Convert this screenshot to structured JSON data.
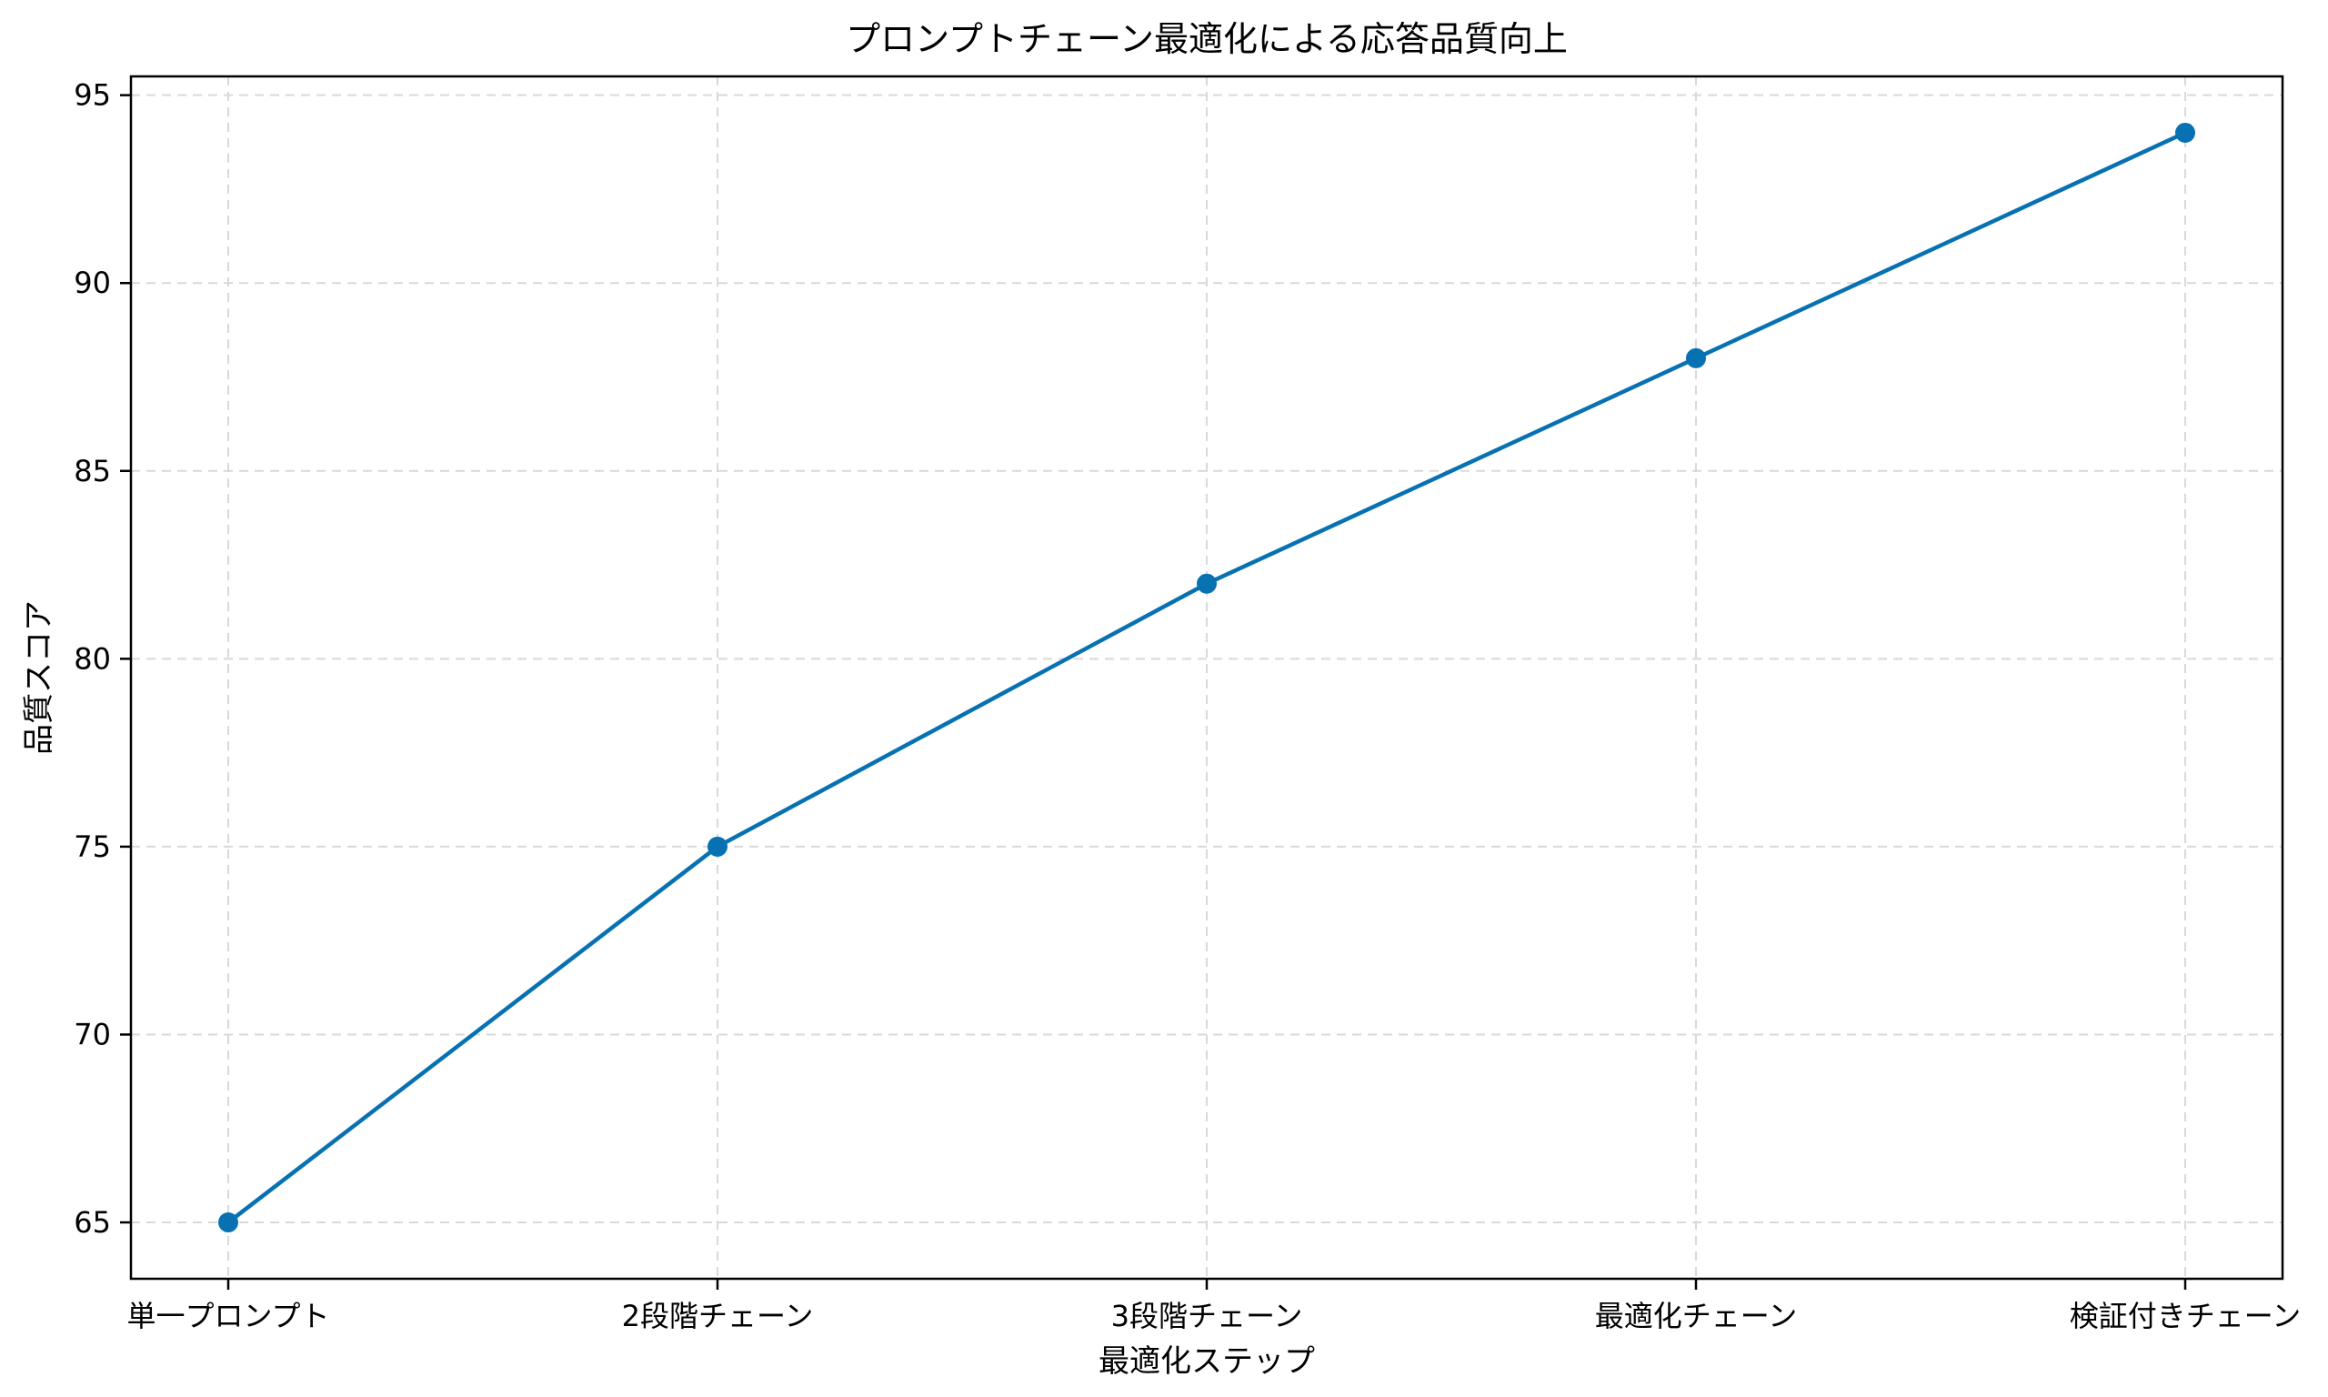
{
  "chart_data": {
    "type": "line",
    "title": "プロンプトチェーン最適化による応答品質向上",
    "xlabel": "最適化ステップ",
    "ylabel": "品質スコア",
    "categories": [
      "単一プロンプト",
      "2段階チェーン",
      "3段階チェーン",
      "最適化チェーン",
      "検証付きチェーン"
    ],
    "series": [
      {
        "values": [
          65,
          75,
          82,
          88,
          94
        ]
      }
    ],
    "ylim": [
      63.5,
      95.5
    ],
    "yticks": [
      65,
      70,
      75,
      80,
      85,
      90,
      95
    ],
    "grid": true,
    "grid_style": "dashed",
    "markers": true,
    "colors": {
      "series": "#0771b2",
      "grid": "#d9d9d9",
      "axis": "#000000"
    }
  }
}
